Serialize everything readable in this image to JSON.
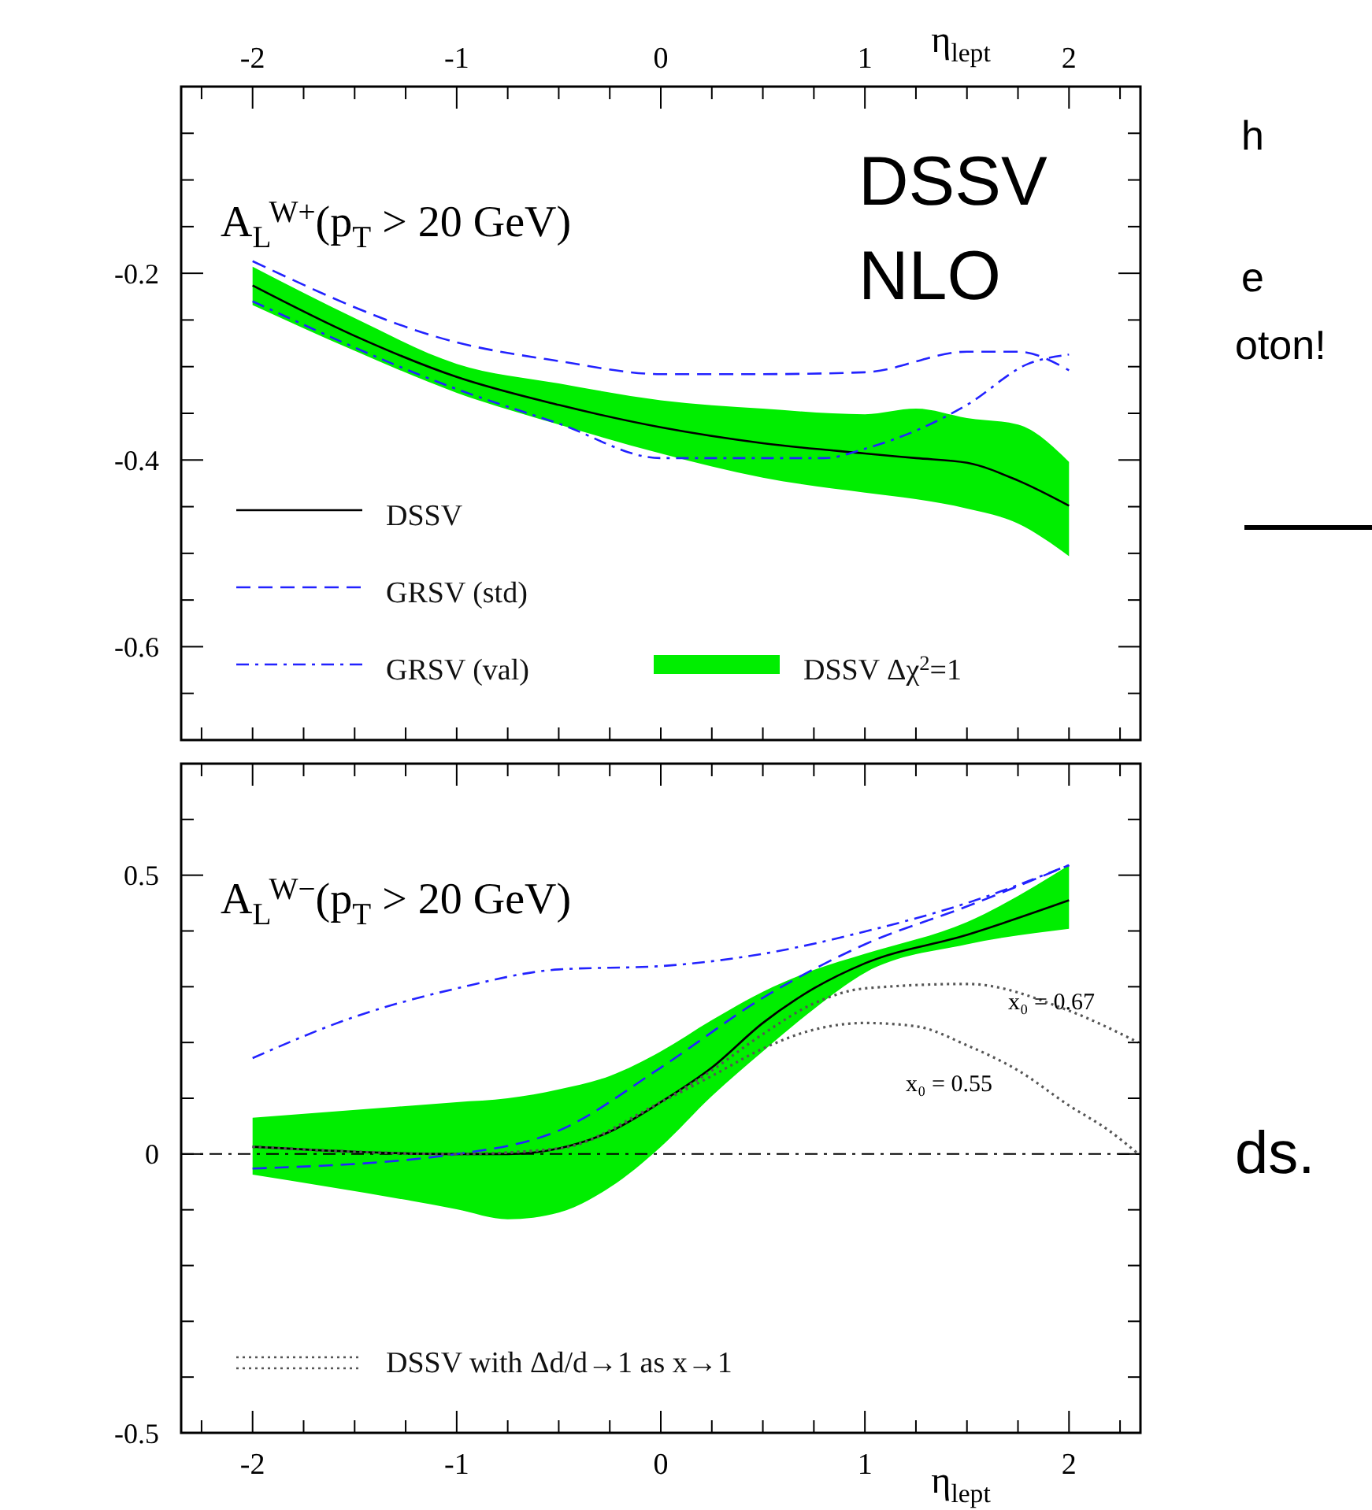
{
  "chart_data": [
    {
      "type": "line",
      "title": "A$_{L}$$^{W+}$(p$_{T}$ > 20 GeV)",
      "x2label": "η$_{lept}$",
      "xlim": [
        -2.35,
        2.35
      ],
      "x2lim": [
        -2.35,
        2.35
      ],
      "xticks": [
        {
          "value": -2,
          "label": null
        },
        {
          "value": -1.75,
          "label": null
        },
        {
          "value": -1.5,
          "label": null
        },
        {
          "value": -1.25,
          "label": null
        },
        {
          "value": -1,
          "label": null
        },
        {
          "value": -0.75,
          "label": null
        },
        {
          "value": -0.5,
          "label": null
        },
        {
          "value": -0.25,
          "label": null
        },
        {
          "value": 0,
          "label": null
        },
        {
          "value": 0.25,
          "label": null
        },
        {
          "value": 0.5,
          "label": null
        },
        {
          "value": 0.75,
          "label": null
        },
        {
          "value": 1,
          "label": null
        },
        {
          "value": 1.25,
          "label": null
        },
        {
          "value": 1.5,
          "label": null
        },
        {
          "value": 1.75,
          "label": null
        },
        {
          "value": 2,
          "label": null
        },
        {
          "value": 2.25,
          "label": null
        },
        {
          "value": -2.25,
          "label": null
        }
      ],
      "x2ticks": [
        {
          "value": -2,
          "label": "-2"
        },
        {
          "value": -1,
          "label": "-1"
        },
        {
          "value": 0,
          "label": "0"
        },
        {
          "value": 1,
          "label": "1"
        },
        {
          "value": 2,
          "label": "2"
        },
        {
          "value": -2.25,
          "label": null
        },
        {
          "value": -1.75,
          "label": null
        },
        {
          "value": -1.5,
          "label": null
        },
        {
          "value": -1.25,
          "label": null
        },
        {
          "value": -0.75,
          "label": null
        },
        {
          "value": -0.5,
          "label": null
        },
        {
          "value": -0.25,
          "label": null
        },
        {
          "value": 0.25,
          "label": null
        },
        {
          "value": 0.5,
          "label": null
        },
        {
          "value": 0.75,
          "label": null
        },
        {
          "value": 1.25,
          "label": null
        },
        {
          "value": 1.5,
          "label": null
        },
        {
          "value": 1.75,
          "label": null
        },
        {
          "value": 2.25,
          "label": null
        }
      ],
      "ylim": [
        -0.7,
        0
      ],
      "yticks": [
        {
          "value": -0.2,
          "label": "-0.2"
        },
        {
          "value": -0.4,
          "label": "-0.4"
        },
        {
          "value": -0.6,
          "label": "-0.6"
        },
        {
          "value": -0.65,
          "label": null
        },
        {
          "value": -0.55,
          "label": null
        },
        {
          "value": -0.5,
          "label": null
        },
        {
          "value": -0.45,
          "label": null
        },
        {
          "value": -0.35,
          "label": null
        },
        {
          "value": -0.3,
          "label": null
        },
        {
          "value": -0.25,
          "label": null
        },
        {
          "value": -0.15,
          "label": null
        },
        {
          "value": -0.1,
          "label": null
        },
        {
          "value": -0.05,
          "label": null
        }
      ],
      "tick_labels": "y",
      "legend": "bottom left",
      "grid": false,
      "series": [
        {
          "name": "DSSV",
          "color": "#000000",
          "line_style": "solid",
          "x": [
            -2,
            -1.5,
            -1,
            -0.5,
            0,
            0.5,
            1,
            1.25,
            1.5,
            1.75,
            2
          ],
          "values": [
            -0.213,
            -0.267,
            -0.311,
            -0.341,
            -0.365,
            -0.382,
            -0.393,
            -0.398,
            -0.403,
            -0.422,
            -0.449
          ],
          "lower": [
            -0.234,
            -0.283,
            -0.328,
            -0.362,
            -0.393,
            -0.419,
            -0.435,
            -0.442,
            -0.452,
            -0.468,
            -0.503
          ],
          "upper": [
            -0.193,
            -0.248,
            -0.297,
            -0.318,
            -0.336,
            -0.345,
            -0.351,
            -0.345,
            -0.355,
            -0.362,
            -0.402
          ]
        },
        {
          "name": "GRSV (std)",
          "color": "#2222ff",
          "line_style": "dashed",
          "x": [
            -2,
            -1,
            -0.5,
            0,
            0.5,
            1,
            1.5,
            1.75,
            2
          ],
          "values": [
            -0.187,
            -0.274,
            -0.294,
            -0.308,
            -0.308,
            -0.306,
            -0.284,
            -0.284,
            -0.304
          ]
        },
        {
          "name": "GRSV (val)",
          "color": "#2222ff",
          "line_style": "dashdot",
          "x": [
            -2,
            -1,
            -0.5,
            0,
            0.5,
            0.8,
            1,
            1.5,
            1.8,
            2
          ],
          "values": [
            -0.23,
            -0.324,
            -0.361,
            -0.398,
            -0.398,
            -0.398,
            -0.388,
            -0.341,
            -0.297,
            -0.287
          ]
        }
      ],
      "annotations": [
        "DSSV\nNLO",
        "h",
        "e",
        "oton!",
        "DSSV Δχ$^{2}$=1"
      ]
    },
    {
      "type": "line",
      "title": "A$_{L}$$^{W−}$(p$_{T}$ > 20 GeV)",
      "xlabel": "η$_{lept}$",
      "xlim": [
        -2.35,
        2.35
      ],
      "xticks": [
        {
          "value": -2,
          "label": "-2"
        },
        {
          "value": -1,
          "label": "-1"
        },
        {
          "value": 0,
          "label": "0"
        },
        {
          "value": 1,
          "label": "1"
        },
        {
          "value": 2,
          "label": "2"
        },
        {
          "value": -2.25,
          "label": null
        },
        {
          "value": -1.75,
          "label": null
        },
        {
          "value": -1.5,
          "label": null
        },
        {
          "value": -1.25,
          "label": null
        },
        {
          "value": -0.75,
          "label": null
        },
        {
          "value": -0.5,
          "label": null
        },
        {
          "value": -0.25,
          "label": null
        },
        {
          "value": 0.25,
          "label": null
        },
        {
          "value": 0.5,
          "label": null
        },
        {
          "value": 0.75,
          "label": null
        },
        {
          "value": 1.25,
          "label": null
        },
        {
          "value": 1.5,
          "label": null
        },
        {
          "value": 1.75,
          "label": null
        },
        {
          "value": 2.25,
          "label": null
        }
      ],
      "ylim": [
        -0.5,
        0.7
      ],
      "yticks": [
        {
          "value": -0.5,
          "label": "-0.5"
        },
        {
          "value": 0,
          "label": "0"
        },
        {
          "value": 0.5,
          "label": "0.5"
        },
        {
          "value": -0.4,
          "label": null
        },
        {
          "value": -0.3,
          "label": null
        },
        {
          "value": -0.2,
          "label": null
        },
        {
          "value": -0.1,
          "label": null
        },
        {
          "value": 0.1,
          "label": null
        },
        {
          "value": 0.2,
          "label": null
        },
        {
          "value": 0.3,
          "label": null
        },
        {
          "value": 0.4,
          "label": null
        },
        {
          "value": 0.6,
          "label": null
        }
      ],
      "legend": "bottom left",
      "grid": false,
      "ref_lines": [
        {
          "axis": "y",
          "value": 0,
          "color": "#000000"
        }
      ],
      "series": [
        {
          "color": "#000000",
          "line_style": "solid",
          "x": [
            -2,
            -1,
            -0.75,
            -0.5,
            -0.25,
            0,
            0.25,
            0.5,
            0.75,
            1,
            1.5,
            2
          ],
          "values": [
            0.013,
            0,
            0,
            0.01,
            0.04,
            0.093,
            0.155,
            0.235,
            0.297,
            0.342,
            0.393,
            0.455
          ],
          "lower": [
            -0.037,
            -0.099,
            -0.117,
            -0.105,
            -0.06,
            0.013,
            0.104,
            0.184,
            0.26,
            0.325,
            0.376,
            0.404
          ],
          "upper": [
            0.065,
            0.093,
            0.1,
            0.116,
            0.14,
            0.184,
            0.24,
            0.291,
            0.33,
            0.359,
            0.416,
            0.518
          ]
        },
        {
          "color": "#2222ff",
          "line_style": "dashed",
          "x": [
            -2,
            -1,
            -0.5,
            0,
            0.5,
            1,
            1.5,
            2
          ],
          "values": [
            -0.026,
            0,
            0.042,
            0.155,
            0.28,
            0.376,
            0.444,
            0.518
          ]
        },
        {
          "color": "#2222ff",
          "line_style": "dashdot",
          "x": [
            -2,
            -1.5,
            -1,
            -0.5,
            0,
            0.5,
            1,
            1.5,
            2
          ],
          "values": [
            0.172,
            0.246,
            0.297,
            0.331,
            0.337,
            0.359,
            0.399,
            0.45,
            0.518
          ]
        },
        {
          "name": "DSSV with Δd/d→1 as x→1",
          "color": "#555555",
          "line_style": "dotted",
          "x": [
            -2,
            -1,
            -0.5,
            0,
            0.25,
            0.5,
            0.75,
            1,
            1.5,
            2,
            2.34
          ],
          "values": [
            0.013,
            0,
            0.01,
            0.093,
            0.15,
            0.215,
            0.27,
            0.297,
            0.305,
            0.257,
            0.2
          ]
        },
        {
          "color": "#555555",
          "line_style": "dotted",
          "x": [
            -2,
            -1,
            -0.5,
            0,
            0.25,
            0.5,
            0.75,
            1,
            1.25,
            1.5,
            1.75,
            2,
            2.2,
            2.34
          ],
          "values": [
            0.013,
            0,
            0.01,
            0.093,
            0.14,
            0.189,
            0.223,
            0.235,
            0.229,
            0.195,
            0.15,
            0.087,
            0.041,
            0
          ]
        }
      ],
      "annotations": [
        "x₀ = 0.67",
        "x₀ = 0.55",
        "ds."
      ]
    }
  ]
}
